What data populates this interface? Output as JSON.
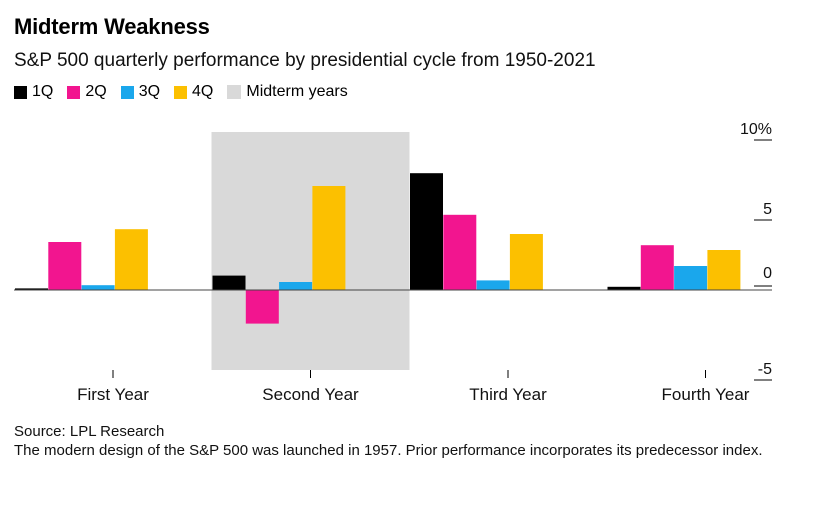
{
  "header": {
    "title": "Midterm Weakness",
    "subtitle": "S&P 500 quarterly performance by presidential cycle from 1950-2021"
  },
  "legend": {
    "items": [
      {
        "label": "1Q",
        "color": "#000000"
      },
      {
        "label": "2Q",
        "color": "#f2158f"
      },
      {
        "label": "3Q",
        "color": "#1aa7ec"
      },
      {
        "label": "4Q",
        "color": "#fcc000"
      }
    ],
    "highlight": {
      "label": "Midterm years",
      "color": "#d9d9d9"
    }
  },
  "chart_data": {
    "type": "bar",
    "categories": [
      "First Year",
      "Second Year",
      "Third Year",
      "Fourth Year"
    ],
    "series": [
      {
        "name": "1Q",
        "color": "#000000",
        "values": [
          0.1,
          0.9,
          7.3,
          0.2
        ]
      },
      {
        "name": "2Q",
        "color": "#f2158f",
        "values": [
          3.0,
          -2.1,
          4.7,
          2.8
        ]
      },
      {
        "name": "3Q",
        "color": "#1aa7ec",
        "values": [
          0.3,
          0.5,
          0.6,
          1.5
        ]
      },
      {
        "name": "4Q",
        "color": "#fcc000",
        "values": [
          3.8,
          6.5,
          3.5,
          2.5
        ]
      }
    ],
    "ylim": [
      -5,
      10
    ],
    "y_ticks": [
      {
        "value": 10,
        "label": "10%"
      },
      {
        "value": 5,
        "label": "5"
      },
      {
        "value": 0,
        "label": "0"
      },
      {
        "value": -5,
        "label": "-5"
      }
    ],
    "highlighted_category": "Second Year",
    "highlight_label": "Midterm years"
  },
  "footer": {
    "source": "Source: LPL Research",
    "note": "The modern design of the S&P 500 was launched in 1957. Prior performance incorporates its predecessor index."
  }
}
